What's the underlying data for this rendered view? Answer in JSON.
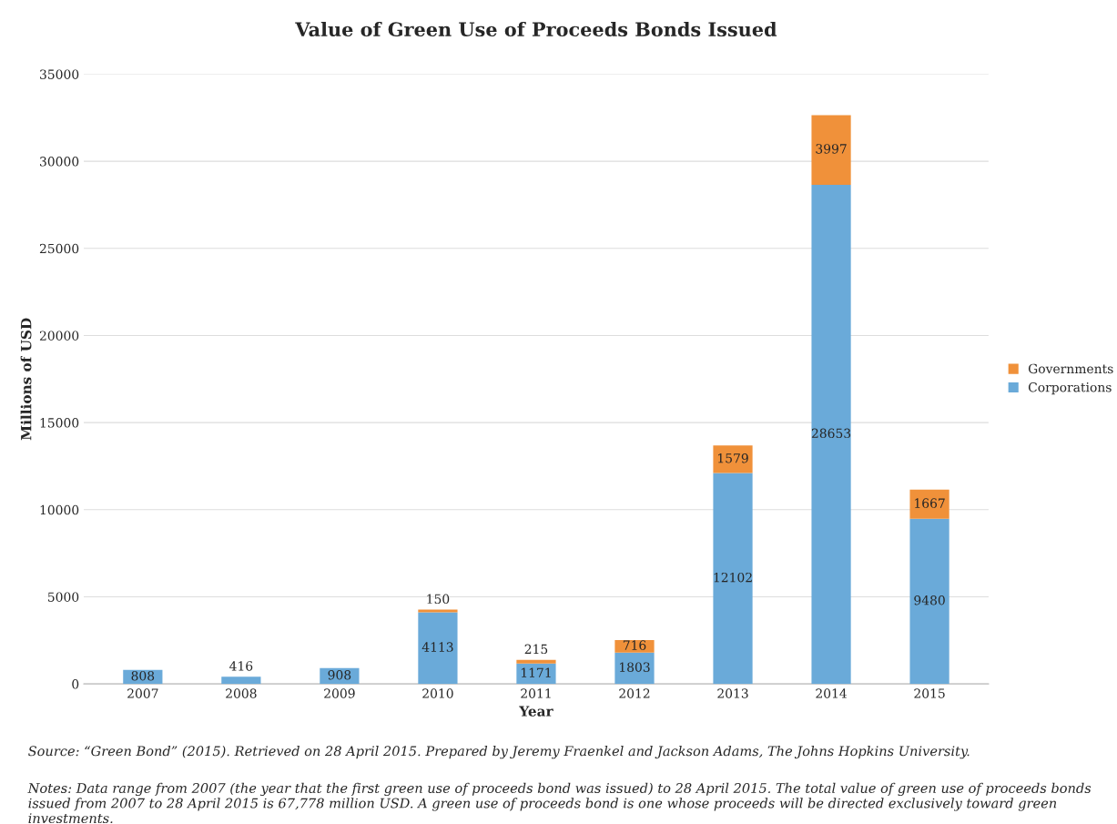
{
  "chart_data": {
    "type": "bar",
    "title": "Value of Green Use of Proceeds Bonds Issued",
    "xlabel": "Year",
    "ylabel": "Millions of USD",
    "categories": [
      "2007",
      "2008",
      "2009",
      "2010",
      "2011",
      "2012",
      "2013",
      "2014",
      "2015"
    ],
    "series": [
      {
        "name": "Corporations",
        "color": "#6aaad9",
        "values": [
          808,
          416,
          908,
          4113,
          1171,
          1803,
          12102,
          28653,
          9480
        ]
      },
      {
        "name": "Governments",
        "color": "#f0913a",
        "values": [
          null,
          null,
          null,
          150,
          215,
          716,
          1579,
          3997,
          1667
        ]
      }
    ],
    "stacked": true,
    "data_labels": true,
    "ylim": [
      0,
      35000
    ],
    "yticks": [
      0,
      5000,
      10000,
      15000,
      20000,
      25000,
      30000,
      35000
    ],
    "grid": "y",
    "legend": "right",
    "annotations": [
      "Source: “Green Bond” (2015). Retrieved on 28 April 2015. Prepared by Jeremy Fraenkel and Jackson Adams, The Johns Hopkins University.",
      "Notes: Data range from 2007 (the year that the first green use of proceeds bond was issued) to 28 April 2015. The total value of green use of proceeds bonds issued from 2007 to 28 April 2015 is 67,778 million USD. A green use of proceeds bond is one whose proceeds will be directed exclusively toward green investments."
    ]
  }
}
